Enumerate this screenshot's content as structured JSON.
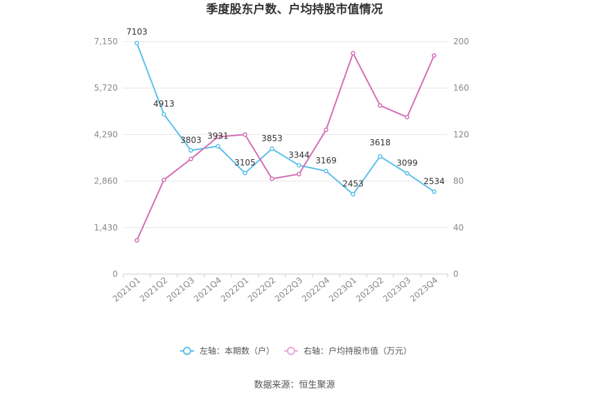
{
  "chart_data": {
    "type": "line",
    "title": "季度股东户数、户均持股市值情况",
    "categories": [
      "2021Q1",
      "2021Q2",
      "2021Q3",
      "2021Q4",
      "2022Q1",
      "2022Q2",
      "2022Q3",
      "2022Q4",
      "2023Q1",
      "2023Q2",
      "2023Q3",
      "2023Q4"
    ],
    "y_left": {
      "ticks": [
        "0",
        "1,430",
        "2,860",
        "4,290",
        "5,720",
        "7,150"
      ],
      "range": [
        0,
        7150
      ]
    },
    "y_right": {
      "ticks": [
        "0",
        "40",
        "80",
        "120",
        "160",
        "200"
      ],
      "range": [
        0,
        200
      ]
    },
    "series": [
      {
        "name": "左轴：本期数（户）",
        "axis": "left",
        "color": "#5bc0eb",
        "values": [
          7103,
          4913,
          3803,
          3931,
          3105,
          3853,
          3344,
          3169,
          2453,
          3618,
          3099,
          2534
        ],
        "labels": [
          "7103",
          "4913",
          "3803",
          "3931",
          "3105",
          "3853",
          "3344",
          "3169",
          "2453",
          "3618",
          "3099",
          "2534"
        ]
      },
      {
        "name": "右轴：户均持股市值（万元）",
        "axis": "right",
        "color": "#d36eb4",
        "values": [
          29,
          81,
          99,
          118,
          120,
          82,
          86,
          124,
          190,
          145,
          135,
          188
        ]
      }
    ],
    "grid": true,
    "legend_position": "bottom"
  },
  "source_text": "数据来源：恒生聚源"
}
